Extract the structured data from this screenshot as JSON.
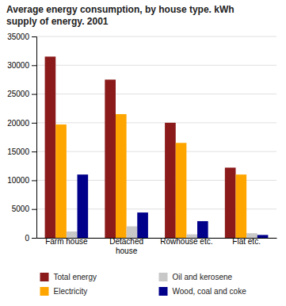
{
  "chart_data": {
    "type": "bar",
    "title": "Average energy consumption, by house type. kWh\nsupply of energy. 2001",
    "categories": [
      "Farm house",
      "Detached\nhouse",
      "Rowhouse etc.",
      "Flat etc."
    ],
    "series": [
      {
        "name": "Total energy",
        "color": "#8B1A1A",
        "values": [
          31500,
          27500,
          20000,
          12200
        ]
      },
      {
        "name": "Electricity",
        "color": "#FFA500",
        "values": [
          19700,
          21500,
          16500,
          11000
        ]
      },
      {
        "name": "Oil and kerosene",
        "color": "#C8C8C8",
        "values": [
          1100,
          2000,
          600,
          800
        ]
      },
      {
        "name": "Wood, coal and coke",
        "color": "#00008B",
        "values": [
          11000,
          4400,
          2900,
          500
        ]
      }
    ],
    "ylim": [
      0,
      35000
    ],
    "yticks": [
      0,
      5000,
      10000,
      15000,
      20000,
      25000,
      30000,
      35000
    ],
    "grid": true,
    "legend": "bottom"
  }
}
